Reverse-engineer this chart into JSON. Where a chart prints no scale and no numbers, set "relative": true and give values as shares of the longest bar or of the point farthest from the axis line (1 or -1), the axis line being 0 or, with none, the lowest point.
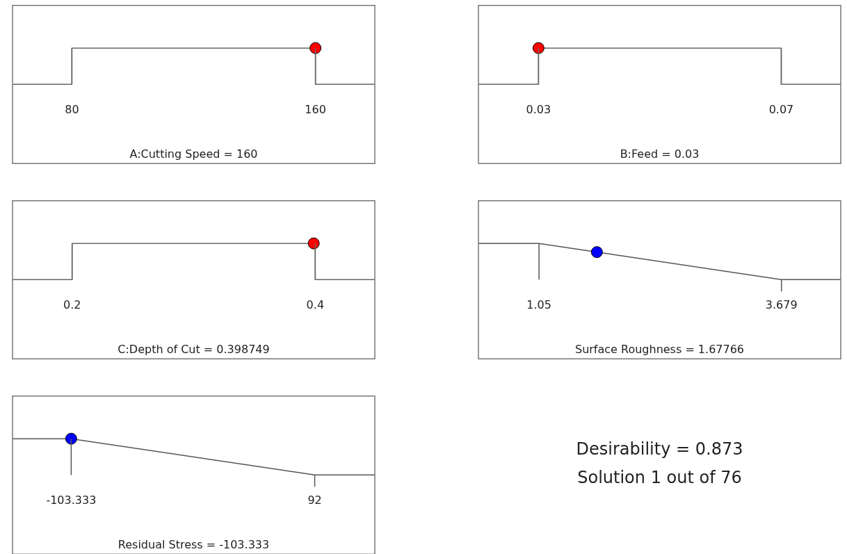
{
  "chart_data": [
    {
      "type": "line",
      "xlabel": "A:Cutting Speed = 160",
      "xlim": [
        60.5,
        179.5
      ],
      "xticks": [
        80,
        160
      ],
      "relative": true,
      "series": [
        {
          "type": "line",
          "x": [
            60.5,
            80,
            80,
            160,
            160,
            179.5
          ],
          "values": [
            0,
            0,
            1,
            1,
            0,
            0
          ],
          "color": "#666666",
          "marker": "none"
        },
        {
          "type": "scatter",
          "x": [
            160
          ],
          "values": [
            1
          ],
          "color": "#ff0000",
          "marker": "circle"
        }
      ]
    },
    {
      "type": "line",
      "xlabel": "B:Feed = 0.03",
      "xlim": [
        0.0201,
        0.0798
      ],
      "xticks": [
        0.03,
        0.07
      ],
      "relative": true,
      "series": [
        {
          "type": "line",
          "x": [
            0.0201,
            0.03,
            0.03,
            0.07,
            0.07,
            0.0798
          ],
          "values": [
            0,
            0,
            1,
            1,
            0,
            0
          ],
          "color": "#666666",
          "marker": "none"
        },
        {
          "type": "scatter",
          "x": [
            0.03
          ],
          "values": [
            1
          ],
          "color": "#ff0000",
          "marker": "circle"
        }
      ]
    },
    {
      "type": "line",
      "xlabel": "C:Depth of Cut = 0.398749",
      "xlim": [
        0.151,
        0.449
      ],
      "xticks": [
        0.2,
        0.4
      ],
      "relative": true,
      "series": [
        {
          "type": "line",
          "x": [
            0.151,
            0.2,
            0.2,
            0.4,
            0.4,
            0.449
          ],
          "values": [
            0,
            0,
            1,
            1,
            0,
            0
          ],
          "color": "#666666",
          "marker": "none"
        },
        {
          "type": "scatter",
          "x": [
            0.398749
          ],
          "values": [
            1
          ],
          "color": "#ff0000",
          "marker": "circle"
        }
      ]
    },
    {
      "type": "line",
      "xlabel": "Surface Roughness = 1.67766",
      "xlim": [
        0.393,
        4.322
      ],
      "xticks": [
        1.05,
        3.679
      ],
      "relative": true,
      "series": [
        {
          "type": "line",
          "x": [
            0.393,
            1.05,
            3.679,
            4.322
          ],
          "values": [
            1,
            1,
            0,
            0
          ],
          "color": "#555555",
          "marker": "none"
        },
        {
          "type": "scatter",
          "x": [
            1.67766
          ],
          "values": [
            0.76
          ],
          "color": "#0000ff",
          "marker": "circle"
        }
      ]
    },
    {
      "type": "line",
      "xlabel": "Residual Stress = -103.333",
      "xlim": [
        -150.4,
        140.2
      ],
      "xticks": [
        -103.333,
        92
      ],
      "relative": true,
      "series": [
        {
          "type": "line",
          "x": [
            -150.4,
            -103.333,
            92,
            140.2
          ],
          "values": [
            1,
            1,
            0,
            0
          ],
          "color": "#555555",
          "marker": "none"
        },
        {
          "type": "scatter",
          "x": [
            -103.333
          ],
          "values": [
            1
          ],
          "color": "#0000ff",
          "marker": "circle"
        }
      ]
    },
    {
      "type": "other",
      "title": "Desirability = 0.873",
      "subtitle": "Solution 1 out of 76"
    }
  ]
}
